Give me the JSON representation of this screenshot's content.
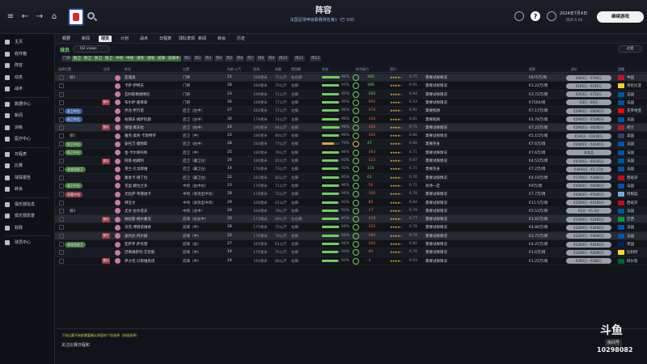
{
  "header": {
    "title": "阵容",
    "subtitle": "法国足球甲级联赛排名第1（已 0/0）",
    "date": "2024年7月4日",
    "date_sub": "周四 6:06",
    "continue_label": "继续游戏"
  },
  "sidebar": {
    "items": [
      {
        "label": "主页",
        "icon": "home-icon"
      },
      {
        "label": "收件箱",
        "icon": "inbox-icon"
      },
      {
        "label": "阵容",
        "icon": "squad-icon"
      },
      {
        "label": "动态",
        "icon": "dynamics-icon"
      },
      {
        "label": "战术",
        "icon": "tactics-icon"
      },
      {
        "label": "数据中心",
        "icon": "data-icon"
      },
      {
        "label": "新闻",
        "icon": "news-icon"
      },
      {
        "label": "训练",
        "icon": "training-icon"
      },
      {
        "label": "医疗中心",
        "icon": "medical-icon"
      },
      {
        "label": "日程表",
        "icon": "calendar-icon"
      },
      {
        "label": "比赛",
        "icon": "match-icon"
      },
      {
        "label": "球探报告",
        "icon": "scouting-icon"
      },
      {
        "label": "转会",
        "icon": "transfer-icon"
      },
      {
        "label": "俱乐部信息",
        "icon": "club-info-icon"
      },
      {
        "label": "俱乐部愿景",
        "icon": "club-vision-icon"
      },
      {
        "label": "财政",
        "icon": "finance-icon"
      },
      {
        "label": "球员中心",
        "icon": "player-center-icon"
      }
    ]
  },
  "menu": [
    "概要",
    "新闻",
    "球员",
    "计划",
    "战术",
    "日程表",
    "球队表现",
    "新闻",
    "转会",
    "历史"
  ],
  "menu_active_index": 2,
  "squad": {
    "title": "球员",
    "view": "Q2 views",
    "filter_label": "过滤"
  },
  "chips": [
    {
      "label": "门将",
      "on": false
    },
    {
      "label": "防卫",
      "on": true
    },
    {
      "label": "防卫",
      "on": true
    },
    {
      "label": "防卫",
      "on": true
    },
    {
      "label": "防卫",
      "on": true
    },
    {
      "label": "中场",
      "on": true
    },
    {
      "label": "中场",
      "on": true
    },
    {
      "label": "进攻",
      "on": true
    },
    {
      "label": "进攻",
      "on": true
    },
    {
      "label": "前锋",
      "on": true
    },
    {
      "label": "前锋中",
      "on": true
    },
    {
      "label": "阵1",
      "on": false
    },
    {
      "label": "阵2",
      "on": false
    },
    {
      "label": "阵3",
      "on": false
    },
    {
      "label": "阵4",
      "on": false
    },
    {
      "label": "阵5",
      "on": false
    },
    {
      "label": "阵6",
      "on": false
    },
    {
      "label": "阵7",
      "on": false
    },
    {
      "label": "阵8",
      "on": false
    },
    {
      "label": "阵9",
      "on": false
    },
    {
      "label": "阵10",
      "on": false
    },
    {
      "label": "阵11",
      "on": false
    },
    {
      "label": "阵12",
      "on": false
    }
  ],
  "columns": [
    "选择位置",
    "信息",
    "姓名",
    "位置",
    "年龄",
    "士气",
    "身高",
    "体重",
    "惯用脚",
    "状态",
    "综合能力",
    "潜力",
    "周薪",
    "身价",
    "国籍"
  ],
  "rows": [
    {
      "pos": "替1",
      "pill": "",
      "pc": "",
      "tag": "",
      "name": "亚理奥",
      "role": "门将",
      "age": "21",
      "height": "188厘米",
      "weight": "75公斤",
      "foot": "右右脚",
      "cond": "98%",
      "ab": "300",
      "ab_c": "green",
      "rating": "6.75",
      "status": "需要试探情况",
      "wage": "€875万/周",
      "value": "€640万 - €700万",
      "nation": "中国",
      "flag": "#c8102e",
      "row_class": "hl"
    },
    {
      "pos": "",
      "pill": "",
      "pc": "",
      "tag": "",
      "name": "卡萨·伊特夫",
      "role": "门将",
      "age": "28",
      "height": "184厘米",
      "weight": "75公斤",
      "foot": "右脚",
      "cond": "97%",
      "ab": "300",
      "ab_c": "green",
      "rating": "6.91",
      "status": "需要试探情况",
      "wage": "€1.22万/周",
      "value": "€105万 - €185万",
      "nation": "哥伦比亚",
      "flag": "#fcd116",
      "row_class": ""
    },
    {
      "pos": "",
      "pill": "",
      "pc": "",
      "tag": "",
      "name": "瓦利耶勒德明尼",
      "role": "门将",
      "age": "23",
      "height": "190厘米",
      "weight": "71公斤",
      "foot": "左脚",
      "cond": "95%",
      "ab": "-200",
      "ab_c": "green",
      "rating": "6.64",
      "status": "需要试探情况",
      "wage": "€3.72万/周",
      "value": "€250万 - €750万",
      "nation": "法国",
      "flag": "#0055a4",
      "row_class": "alt"
    },
    {
      "pos": "",
      "pill": "",
      "pc": "",
      "tag": "替补",
      "name": "布尔萨·曼库索",
      "role": "门将",
      "age": "26",
      "height": "188厘米",
      "weight": "77公斤",
      "foot": "右脚",
      "cond": "95%",
      "ab": "-900",
      "ab_c": "red",
      "rating": "6.53",
      "status": "需要试探情况",
      "wage": "€7500/周",
      "value": "€3万 - €9万",
      "nation": "法国",
      "flag": "#0055a4",
      "row_class": ""
    },
    {
      "pos": "",
      "pill": "防卫中左",
      "pc": "blue",
      "tag": "",
      "name": "乔治·伊万诺",
      "role": "后卫（左中）",
      "age": "27",
      "height": "182厘米",
      "weight": "77公斤",
      "foot": "左脚",
      "cond": "94%",
      "ab": "-376",
      "ab_c": "red",
      "rating": "6.91",
      "status": "需要照顾",
      "wage": "€7.17万/周",
      "value": "€2900万 - €6600万",
      "nation": "克罗地亚",
      "flag": "#ff0000",
      "row_class": "alt"
    },
    {
      "pos": "",
      "pill": "防卫中左",
      "pc": "blue",
      "tag": "",
      "name": "伯朗夫·姆萨科斯",
      "role": "后卫（左中）",
      "age": "30",
      "height": "179厘米",
      "weight": "74公斤",
      "foot": "左脚",
      "cond": "96%",
      "ab": "-330",
      "ab_c": "red",
      "rating": "6.81",
      "status": "需要照顾",
      "wage": "€4.78万/周",
      "value": "€2900万 - €5300万",
      "nation": "法国",
      "flag": "#0055a4",
      "row_class": ""
    },
    {
      "pos": "",
      "pill": "",
      "pc": "",
      "tag": "替补",
      "name": "德瑞·库夫拉",
      "role": "后卫（右中）",
      "age": "24",
      "height": "190厘米",
      "weight": "84公斤",
      "foot": "右脚",
      "cond": "98%",
      "ab": "-346",
      "ab_c": "red",
      "rating": "6.71",
      "status": "需要试探情况",
      "wage": "€7.22万/周",
      "value": "€2900万 - €6200万",
      "nation": "荷兰",
      "flag": "#ae1c28",
      "row_class": "hl"
    },
    {
      "pos": "替1",
      "pill": "",
      "pc": "",
      "tag": "",
      "name": "雅克·奥利·卡斯特罗",
      "role": "后卫（中）",
      "age": "23",
      "height": "186厘米",
      "weight": "80公斤",
      "foot": "右脚",
      "cond": "96%",
      "ab": "-300",
      "ab_c": "red",
      "rating": "6.86",
      "status": "需要试探情况",
      "wage": "€5.15万/周",
      "value": "€140万 - €2300万",
      "nation": "美国",
      "flag": "#3c3b6e",
      "row_class": ""
    },
    {
      "pos": "",
      "pill": "防卫中右",
      "pc": "green",
      "tag": "",
      "name": "安托万·曼图耶",
      "role": "后卫（右中）",
      "age": "28",
      "height": "183厘米",
      "weight": "77公斤",
      "foot": "右脚",
      "cond": "70%",
      "ab": "47",
      "ab_c": "green",
      "rating": "6.89",
      "status": "需要热身",
      "wage": "€7.6万/周",
      "value": "€2400万 - €4100万",
      "nation": "法国",
      "flag": "#0055a4",
      "row_class": "alt"
    },
    {
      "pos": "",
      "pill": "防卫中右",
      "pc": "green",
      "tag": "",
      "name": "金·卡尔郑托利",
      "role": "后卫（中）",
      "age": "25",
      "height": "180厘米",
      "weight": "78公斤",
      "foot": "右脚",
      "cond": "94%",
      "ab": "-364",
      "ab_c": "red",
      "rating": "6.71",
      "status": "需要试探情况",
      "wage": "€7.6万/周",
      "value": "非卖品",
      "nation": "法国",
      "flag": "#0055a4",
      "row_class": ""
    },
    {
      "pos": "",
      "pill": "",
      "pc": "",
      "tag": "替补",
      "name": "阿基·帕姆利",
      "role": "后卫（翼卫左）",
      "age": "20",
      "height": "180厘米",
      "weight": "81公斤",
      "foot": "左脚",
      "cond": "93%",
      "ab": "-323",
      "ab_c": "red",
      "rating": "6.67",
      "status": "需要试探情况",
      "wage": "€4.53万/周",
      "value": "€4700万 - €6500万",
      "nation": "法国",
      "flag": "#0055a4",
      "row_class": "alt"
    },
    {
      "pos": "",
      "pill": "进攻型前卫",
      "pc": "green",
      "tag": "",
      "name": "莱兰·孔戈耶维",
      "role": "后卫（翼卫左）",
      "age": "19",
      "height": "176厘米",
      "weight": "73公斤",
      "foot": "左脚",
      "cond": "93%",
      "ab": "150",
      "ab_c": "green",
      "rating": "6.71",
      "status": "需要热身",
      "wage": "€7.2万/周",
      "value": "€4400万 - €1.17亿",
      "nation": "法国",
      "flag": "#0055a4",
      "row_class": ""
    },
    {
      "pos": "",
      "pill": "",
      "pc": "",
      "tag": "",
      "name": "路易卡·德了拉",
      "role": "后卫（翼卫左）",
      "age": "22",
      "height": "181厘米",
      "weight": "80公斤",
      "foot": "左脚",
      "cond": "95%",
      "ab": "61",
      "ab_c": "green",
      "rating": "6.76",
      "status": "需要试探情况",
      "wage": "€4.19万/周",
      "value": "€1700万 - €2800万",
      "nation": "西班牙",
      "flag": "#c60b1e",
      "row_class": "alt"
    },
    {
      "pos": "",
      "pill": "前卫中右",
      "pc": "green",
      "tag": "",
      "name": "克里·赫拉兰多",
      "role": "中场（右中右）",
      "age": "23",
      "height": "176厘米",
      "weight": "71公斤",
      "foot": "右脚",
      "cond": "96%",
      "ab": "-56",
      "ab_c": "red",
      "rating": "6.71",
      "status": "有待一定",
      "wage": "€9万/周",
      "value": "€4500万 - €8300万",
      "nation": "法国",
      "flag": "#0055a4",
      "row_class": ""
    },
    {
      "pos": "",
      "pill": "前腰中场",
      "pc": "red",
      "tag": "",
      "name": "尤拉萨·韦德福卡",
      "role": "中场（进攻型中场）",
      "age": "28",
      "height": "178厘米",
      "weight": "72公斤",
      "foot": "右脚",
      "cond": "94%",
      "ab": "-100",
      "ab_c": "red",
      "rating": "6.78",
      "status": "需要试探情况",
      "wage": "€7.7万/周",
      "value": "€4300万 - €5000万",
      "nation": "阿根廷",
      "flag": "#75aadb",
      "row_class": "alt"
    },
    {
      "pos": "",
      "pill": "",
      "pc": "",
      "tag": "",
      "name": "佛宝文",
      "role": "中场（进攻型中场）",
      "age": "29",
      "height": "168厘米",
      "weight": "61公斤",
      "foot": "右脚",
      "cond": "93%",
      "ab": "-80",
      "ab_c": "red",
      "rating": "6.84",
      "status": "需要试探情况",
      "wage": "€11.5万/周",
      "value": "€2500万 - €4100万",
      "nation": "西班牙",
      "flag": "#c60b1e",
      "row_class": ""
    },
    {
      "pos": "替2",
      "pill": "",
      "pc": "",
      "tag": "",
      "name": "尤文·古尔诺夫",
      "role": "中场（左中）",
      "age": "29",
      "height": "184厘米",
      "weight": "78公斤",
      "foot": "右脚",
      "cond": "93%",
      "ab": "-27",
      "ab_c": "red",
      "rating": "6.79",
      "status": "需要试探情况",
      "wage": "€5.53万/周",
      "value": "€1亿 - €1.2亿",
      "nation": "法国",
      "flag": "#0055a4",
      "row_class": "alt"
    },
    {
      "pos": "",
      "pill": "",
      "pc": "",
      "tag": "替补",
      "name": "纳拉斯·格尔蒙尼",
      "role": "前锋（右左中）",
      "age": "20",
      "height": "173厘米",
      "weight": "69公斤",
      "foot": "左右脚",
      "cond": "95%",
      "ab": "-208",
      "ab_c": "red",
      "rating": "6.77",
      "status": "需要试探情况",
      "wage": "€1.65万/周",
      "value": "€1700万 - €2400万",
      "nation": "巴西",
      "flag": "#009c3b",
      "row_class": "hl"
    },
    {
      "pos": "",
      "pill": "",
      "pc": "",
      "tag": "",
      "name": "沃克·博德诺维奇",
      "role": "前锋（中）",
      "age": "28",
      "height": "175厘米",
      "weight": "75公斤",
      "foot": "右脚",
      "cond": "94%",
      "ab": "-325",
      "ab_c": "red",
      "rating": "6.78",
      "status": "需要试探情况",
      "wage": "€4.86万/周",
      "value": "€2200万 - €3400万",
      "nation": "法国",
      "flag": "#0055a4",
      "row_class": ""
    },
    {
      "pos": "",
      "pill": "",
      "pc": "",
      "tag": "替补",
      "name": "奥约达·内尔姆",
      "role": "前锋（中）",
      "age": "22",
      "height": "176厘米",
      "weight": "70公斤",
      "foot": "右脚",
      "cond": "94%",
      "ab": "-280",
      "ab_c": "red",
      "rating": "6.79",
      "status": "需要试探情况",
      "wage": "€3.75万/周",
      "value": "€2200万 - €3600万",
      "nation": "法国",
      "flag": "#0055a4",
      "row_class": "hl"
    },
    {
      "pos": "",
      "pill": "进攻型前卫",
      "pc": "green",
      "tag": "",
      "name": "亚萨罗·萨托雷",
      "role": "前锋（右）",
      "age": "27",
      "height": "185厘米",
      "weight": "81公斤",
      "foot": "左脚",
      "cond": "94%",
      "ab": "-200",
      "ab_c": "red",
      "rating": "6.82",
      "status": "需要试探情况",
      "wage": "€4.25万/周",
      "value": "€3300万 - €4400万",
      "nation": "英国",
      "flag": "#012169",
      "row_class": ""
    },
    {
      "pos": "",
      "pill": "",
      "pc": "",
      "tag": "",
      "name": "巴蒂姆萨托·艾伦斯",
      "role": "前锋（中）",
      "age": "19",
      "height": "176厘米",
      "weight": "75公斤",
      "foot": "右脚",
      "cond": "93%",
      "ab": "-40",
      "ab_c": "red",
      "rating": "6.76",
      "status": "需要试探情况",
      "wage": "€1.6万/周",
      "value": "€1200万 - €2000万",
      "nation": "比利时",
      "flag": "#fdda24",
      "row_class": "alt"
    },
    {
      "pos": "",
      "pill": "",
      "pc": "",
      "tag": "替补",
      "name": "伊沙克·贝斯维思诺",
      "role": "前锋（中）",
      "age": "24",
      "height": "192厘米",
      "weight": "86公斤",
      "foot": "右脚",
      "cond": "93%",
      "ab": "-3",
      "ab_c": "red",
      "rating": "6.93",
      "status": "需要试探情况",
      "wage": "€1.25万/周",
      "value": "€200万 - €280万",
      "nation": "阿尔及",
      "flag": "#006233",
      "row_class": ""
    }
  ],
  "footer": {
    "note": "下场比赛开始前需要确认阵容的个别选择（快速选择）",
    "section": "关注比赛日程和"
  },
  "watermark": {
    "logo": "斗鱼",
    "sub": "房间号",
    "id": "10298082"
  }
}
